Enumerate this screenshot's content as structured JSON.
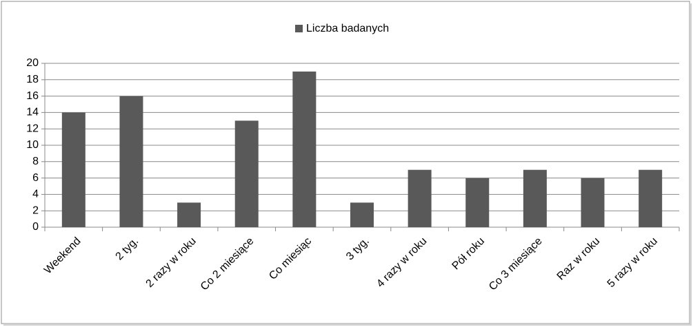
{
  "chart_data": {
    "type": "bar",
    "categories": [
      "Weekend",
      "2 tyg.",
      "2 razy w roku",
      "Co 2 miesiące",
      "Co miesiąc",
      "3 tyg.",
      "4 razy w roku",
      "Pół roku",
      "Co 3 miesiące",
      "Raz w roku",
      "5 razy w roku"
    ],
    "series": [
      {
        "name": "Liczba badanych",
        "color": "#595959",
        "values": [
          14,
          16,
          3,
          13,
          19,
          3,
          7,
          6,
          7,
          6,
          7
        ]
      }
    ],
    "ylim": [
      0,
      20
    ],
    "yticks": [
      0,
      2,
      4,
      6,
      8,
      10,
      12,
      14,
      16,
      18,
      20
    ],
    "grid": true,
    "legend": "top"
  }
}
